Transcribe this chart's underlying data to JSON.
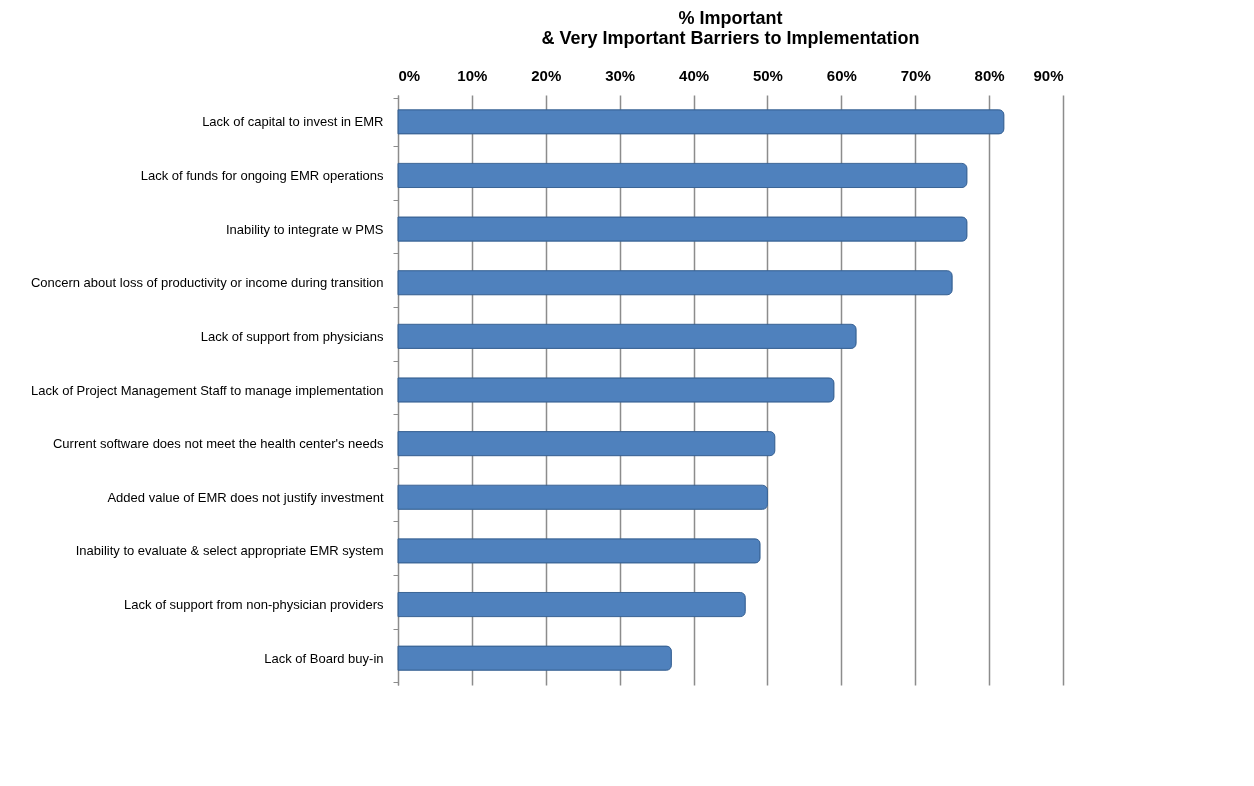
{
  "chart_data": {
    "type": "bar",
    "orientation": "horizontal",
    "title": "% Important\n& Very Important Barriers to Implementation",
    "categories": [
      "Lack of capital to invest in EMR",
      "Lack of funds for ongoing EMR operations",
      "Inability to integrate w PMS",
      "Concern about loss of productivity or income during transition",
      "Lack of support from physicians",
      "Lack of Project Management Staff to manage implementation",
      "Current software does not meet the health center's needs",
      "Added value of EMR does not justify investment",
      "Inability to evaluate & select appropriate EMR system",
      "Lack of support from non-physician providers",
      "Lack of Board buy-in"
    ],
    "values": [
      82,
      77,
      77,
      75,
      62,
      59,
      51,
      50,
      49,
      47,
      37
    ],
    "color": "#4f81bd",
    "xlim": [
      0,
      90
    ],
    "xticks": [
      {
        "value": 0,
        "label": "0%"
      },
      {
        "value": 10,
        "label": "10%"
      },
      {
        "value": 20,
        "label": "20%"
      },
      {
        "value": 30,
        "label": "30%"
      },
      {
        "value": 40,
        "label": "40%"
      },
      {
        "value": 50,
        "label": "50%"
      },
      {
        "value": 60,
        "label": "60%"
      },
      {
        "value": 70,
        "label": "70%"
      },
      {
        "value": 80,
        "label": "80%"
      },
      {
        "value": 90,
        "label": "90%"
      }
    ],
    "grid": "x"
  }
}
